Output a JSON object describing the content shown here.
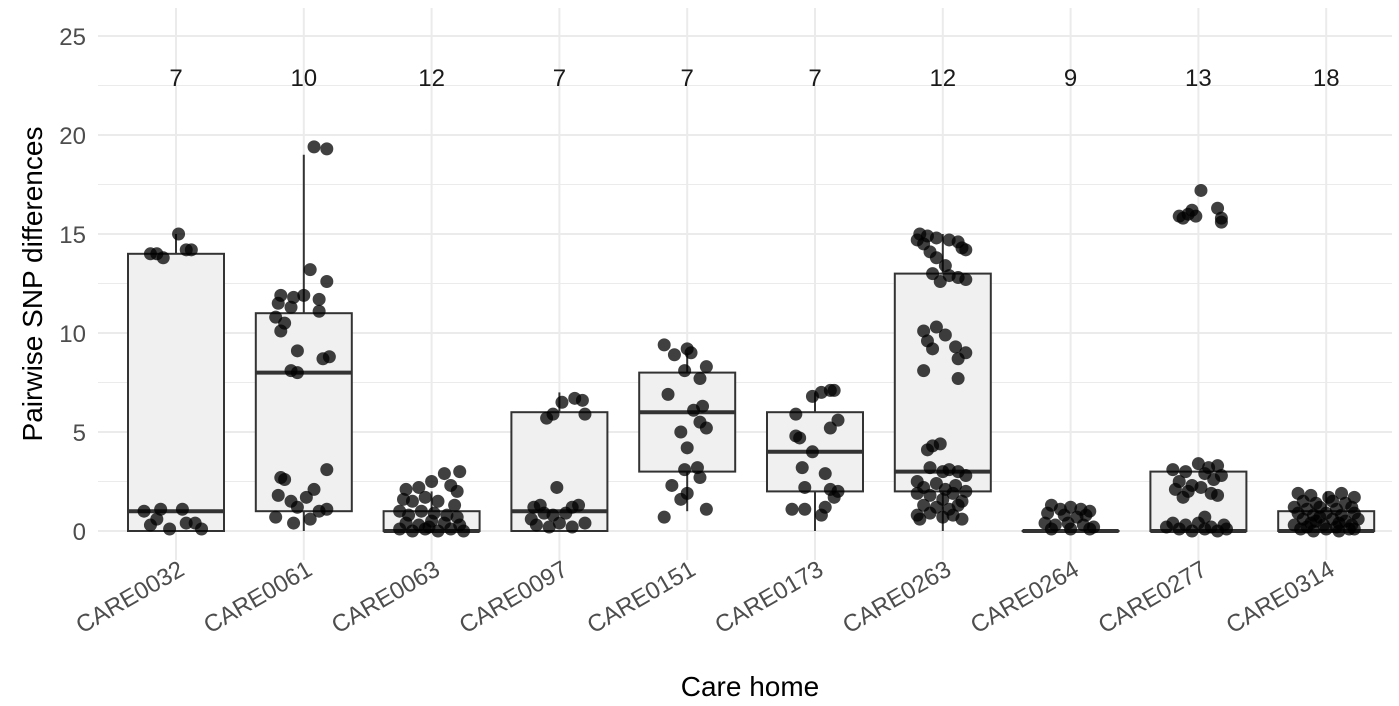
{
  "chart_data": {
    "type": "boxplot",
    "xlabel": "Care home",
    "ylabel": "Pairwise SNP differences",
    "ylim": [
      -1.2,
      25.5
    ],
    "yticks": [
      "0",
      "5",
      "10",
      "15",
      "20",
      "25"
    ],
    "grid": true,
    "categories": [
      "CARE0032",
      "CARE0061",
      "CARE0063",
      "CARE0097",
      "CARE0151",
      "CARE0173",
      "CARE0263",
      "CARE0264",
      "CARE0277",
      "CARE0314"
    ],
    "counts": [
      "7",
      "10",
      "12",
      "7",
      "7",
      "7",
      "12",
      "9",
      "13",
      "18"
    ],
    "box_fill": "#f0f0f0",
    "point_color": "#000000",
    "boxes": [
      {
        "q1": 0,
        "median": 1,
        "q3": 14,
        "whisker_low": 0,
        "whisker_high": 15
      },
      {
        "q1": 1,
        "median": 8,
        "q3": 11,
        "whisker_low": 0,
        "whisker_high": 19
      },
      {
        "q1": 0,
        "median": 0,
        "q3": 1,
        "whisker_low": 0,
        "whisker_high": 2
      },
      {
        "q1": 0,
        "median": 1,
        "q3": 6,
        "whisker_low": 0,
        "whisker_high": 7
      },
      {
        "q1": 3,
        "median": 6,
        "q3": 8,
        "whisker_low": 1,
        "whisker_high": 9
      },
      {
        "q1": 2,
        "median": 4,
        "q3": 6,
        "whisker_low": 0,
        "whisker_high": 7
      },
      {
        "q1": 2,
        "median": 3,
        "q3": 13,
        "whisker_low": 0,
        "whisker_high": 15
      },
      {
        "q1": 0,
        "median": 0,
        "q3": 0,
        "whisker_low": 0,
        "whisker_high": 0
      },
      {
        "q1": 0,
        "median": 0,
        "q3": 3,
        "whisker_low": 0,
        "whisker_high": 3
      },
      {
        "q1": 0,
        "median": 0,
        "q3": 1,
        "whisker_low": 0,
        "whisker_high": 2
      }
    ],
    "points": [
      [
        [
          -0.2,
          14
        ],
        [
          -0.15,
          14
        ],
        [
          -0.1,
          13.8
        ],
        [
          0.02,
          15
        ],
        [
          0.08,
          14.2
        ],
        [
          0.12,
          14.2
        ],
        [
          -0.25,
          1
        ],
        [
          -0.12,
          1.1
        ],
        [
          0.05,
          1.1
        ],
        [
          -0.2,
          0.3
        ],
        [
          -0.05,
          0.1
        ],
        [
          0.08,
          0.4
        ],
        [
          0.15,
          0.4
        ],
        [
          0.2,
          0.1
        ],
        [
          -0.15,
          0.6
        ]
      ],
      [
        [
          0.08,
          19.4
        ],
        [
          0.18,
          19.3
        ],
        [
          0.05,
          13.2
        ],
        [
          0.18,
          12.6
        ],
        [
          -0.18,
          11.9
        ],
        [
          -0.08,
          11.8
        ],
        [
          0,
          11.9
        ],
        [
          0.12,
          11.7
        ],
        [
          -0.2,
          11.5
        ],
        [
          -0.1,
          11.3
        ],
        [
          0.12,
          11.1
        ],
        [
          -0.22,
          10.8
        ],
        [
          -0.15,
          10.5
        ],
        [
          -0.18,
          10.1
        ],
        [
          -0.05,
          9.1
        ],
        [
          0.15,
          8.7
        ],
        [
          0.2,
          8.8
        ],
        [
          -0.1,
          8.1
        ],
        [
          -0.05,
          8
        ],
        [
          0.18,
          3.1
        ],
        [
          -0.18,
          2.7
        ],
        [
          -0.15,
          2.6
        ],
        [
          -0.2,
          1.8
        ],
        [
          -0.1,
          1.5
        ],
        [
          0.08,
          2.1
        ],
        [
          0.02,
          1.7
        ],
        [
          -0.05,
          1.2
        ],
        [
          0.12,
          1
        ],
        [
          0.18,
          1.1
        ],
        [
          -0.22,
          0.7
        ],
        [
          -0.08,
          0.4
        ],
        [
          0.05,
          0.6
        ]
      ],
      [
        [
          -0.2,
          2.1
        ],
        [
          -0.1,
          2.2
        ],
        [
          0,
          2.5
        ],
        [
          0.1,
          2.9
        ],
        [
          0.22,
          3
        ],
        [
          0.15,
          2.3
        ],
        [
          0.2,
          2
        ],
        [
          -0.22,
          1.6
        ],
        [
          -0.15,
          1.5
        ],
        [
          -0.05,
          1.7
        ],
        [
          0.05,
          1.5
        ],
        [
          0.18,
          1.3
        ],
        [
          -0.25,
          1
        ],
        [
          -0.18,
          0.8
        ],
        [
          -0.08,
          1
        ],
        [
          0.02,
          0.9
        ],
        [
          0.12,
          0.8
        ],
        [
          0.2,
          0.7
        ],
        [
          -0.2,
          0.4
        ],
        [
          -0.1,
          0.3
        ],
        [
          0,
          0.5
        ],
        [
          0.1,
          0.4
        ],
        [
          0.22,
          0.3
        ],
        [
          -0.25,
          0.1
        ],
        [
          -0.15,
          0
        ],
        [
          -0.05,
          0.1
        ],
        [
          0.05,
          0
        ],
        [
          0.15,
          0.1
        ],
        [
          0.25,
          0
        ],
        [
          -0.02,
          0.2
        ]
      ],
      [
        [
          0.12,
          6.7
        ],
        [
          0.18,
          6.6
        ],
        [
          0.02,
          6.5
        ],
        [
          -0.05,
          5.9
        ],
        [
          -0.1,
          5.7
        ],
        [
          0.2,
          5.9
        ],
        [
          -0.02,
          2.2
        ],
        [
          -0.15,
          1.3
        ],
        [
          -0.2,
          1.2
        ],
        [
          0.1,
          1.2
        ],
        [
          0.15,
          1.3
        ],
        [
          -0.12,
          0.9
        ],
        [
          -0.05,
          0.8
        ],
        [
          0.05,
          0.9
        ],
        [
          -0.18,
          0.3
        ],
        [
          -0.08,
          0.2
        ],
        [
          0,
          0.4
        ],
        [
          0.1,
          0.2
        ],
        [
          0.2,
          0.4
        ],
        [
          -0.22,
          0.6
        ]
      ],
      [
        [
          -0.18,
          9.4
        ],
        [
          0,
          9.2
        ],
        [
          0.03,
          9
        ],
        [
          -0.1,
          8.9
        ],
        [
          0.15,
          8.3
        ],
        [
          -0.02,
          8.1
        ],
        [
          0.1,
          7.7
        ],
        [
          -0.15,
          6.9
        ],
        [
          0.12,
          6.3
        ],
        [
          0.05,
          6.1
        ],
        [
          0.1,
          5.5
        ],
        [
          0.15,
          5.2
        ],
        [
          -0.05,
          5
        ],
        [
          0,
          4.2
        ],
        [
          -0.02,
          3.1
        ],
        [
          0.08,
          3.2
        ],
        [
          0.1,
          2.7
        ],
        [
          -0.12,
          2.3
        ],
        [
          0,
          1.9
        ],
        [
          -0.05,
          1.6
        ],
        [
          0.15,
          1.1
        ],
        [
          -0.18,
          0.7
        ]
      ],
      [
        [
          0.05,
          7
        ],
        [
          0.15,
          7.1
        ],
        [
          0.12,
          7.1
        ],
        [
          -0.02,
          6.8
        ],
        [
          -0.15,
          5.9
        ],
        [
          0.18,
          5.6
        ],
        [
          0.12,
          5.2
        ],
        [
          -0.15,
          4.8
        ],
        [
          -0.12,
          4.7
        ],
        [
          -0.02,
          4
        ],
        [
          -0.1,
          3.2
        ],
        [
          0.08,
          2.9
        ],
        [
          -0.08,
          2.2
        ],
        [
          0.12,
          2.1
        ],
        [
          0.18,
          2
        ],
        [
          0.15,
          1.7
        ],
        [
          0.08,
          1.2
        ],
        [
          -0.18,
          1.1
        ],
        [
          -0.08,
          1.1
        ],
        [
          0.05,
          0.8
        ]
      ],
      [
        [
          -0.18,
          15
        ],
        [
          -0.12,
          14.9
        ],
        [
          -0.05,
          14.8
        ],
        [
          0.05,
          14.7
        ],
        [
          0.12,
          14.6
        ],
        [
          0.18,
          14.2
        ],
        [
          -0.2,
          14.7
        ],
        [
          0.15,
          14.3
        ],
        [
          -0.15,
          14.5
        ],
        [
          -0.1,
          14.1
        ],
        [
          -0.05,
          13.8
        ],
        [
          0.02,
          13.4
        ],
        [
          -0.08,
          13
        ],
        [
          0.05,
          12.9
        ],
        [
          0.12,
          12.8
        ],
        [
          0.18,
          12.7
        ],
        [
          -0.02,
          12.6
        ],
        [
          -0.15,
          10.1
        ],
        [
          -0.05,
          10.3
        ],
        [
          0.02,
          9.9
        ],
        [
          -0.12,
          9.6
        ],
        [
          0.1,
          9.3
        ],
        [
          0.18,
          9
        ],
        [
          -0.08,
          9.2
        ],
        [
          0.12,
          8.7
        ],
        [
          -0.15,
          8.1
        ],
        [
          0.12,
          7.7
        ],
        [
          -0.08,
          4.3
        ],
        [
          -0.02,
          4.4
        ],
        [
          -0.12,
          4.1
        ],
        [
          -0.1,
          3.2
        ],
        [
          0,
          3
        ],
        [
          0.05,
          3.1
        ],
        [
          0.12,
          3
        ],
        [
          0.18,
          2.8
        ],
        [
          -0.2,
          2.5
        ],
        [
          -0.15,
          2.2
        ],
        [
          -0.05,
          2.4
        ],
        [
          0.02,
          2.1
        ],
        [
          0.1,
          2.3
        ],
        [
          0.18,
          2
        ],
        [
          -0.2,
          1.9
        ],
        [
          -0.1,
          1.8
        ],
        [
          0,
          1.6
        ],
        [
          0.08,
          1.9
        ],
        [
          0.15,
          1.5
        ],
        [
          -0.15,
          1.3
        ],
        [
          -0.05,
          1.2
        ],
        [
          0.05,
          1.1
        ],
        [
          0.12,
          1.3
        ],
        [
          -0.2,
          0.8
        ],
        [
          -0.1,
          0.9
        ],
        [
          0,
          0.7
        ],
        [
          0.08,
          0.8
        ],
        [
          0.15,
          0.6
        ],
        [
          -0.18,
          0.6
        ]
      ],
      [
        [
          -0.15,
          1.3
        ],
        [
          -0.08,
          1.1
        ],
        [
          0,
          1.2
        ],
        [
          0.08,
          1.1
        ],
        [
          0.15,
          1
        ],
        [
          -0.18,
          0.9
        ],
        [
          -0.05,
          0.8
        ],
        [
          0.05,
          0.7
        ],
        [
          0.12,
          0.8
        ],
        [
          -0.2,
          0.4
        ],
        [
          -0.12,
          0.3
        ],
        [
          -0.02,
          0.4
        ],
        [
          0.1,
          0.3
        ],
        [
          0.18,
          0.2
        ],
        [
          -0.15,
          0.1
        ],
        [
          0,
          0.1
        ],
        [
          0.15,
          0.1
        ]
      ],
      [
        [
          0.02,
          17.2
        ],
        [
          -0.15,
          15.9
        ],
        [
          -0.12,
          15.8
        ],
        [
          -0.08,
          16
        ],
        [
          -0.02,
          15.9
        ],
        [
          -0.05,
          16.2
        ],
        [
          0.15,
          16.3
        ],
        [
          0.18,
          15.8
        ],
        [
          0.18,
          15.6
        ],
        [
          0,
          3.4
        ],
        [
          0.15,
          3.3
        ],
        [
          0.08,
          3.2
        ],
        [
          -0.2,
          3.1
        ],
        [
          -0.1,
          3
        ],
        [
          0.05,
          2.9
        ],
        [
          0.18,
          2.8
        ],
        [
          -0.15,
          2.5
        ],
        [
          -0.05,
          2.3
        ],
        [
          0.12,
          2.6
        ],
        [
          -0.18,
          2.1
        ],
        [
          -0.08,
          2
        ],
        [
          0.02,
          2.2
        ],
        [
          0.15,
          1.8
        ],
        [
          -0.12,
          1.7
        ],
        [
          0.1,
          1.9
        ],
        [
          0.05,
          0.7
        ],
        [
          -0.2,
          0.4
        ],
        [
          -0.1,
          0.3
        ],
        [
          0,
          0.4
        ],
        [
          0.1,
          0.2
        ],
        [
          0.2,
          0.3
        ],
        [
          -0.15,
          0.1
        ],
        [
          -0.05,
          0
        ],
        [
          0.05,
          0.1
        ],
        [
          0.15,
          0
        ],
        [
          -0.25,
          0.2
        ],
        [
          0.22,
          0.1
        ]
      ],
      [
        [
          -0.22,
          1.9
        ],
        [
          -0.12,
          1.8
        ],
        [
          0.02,
          1.7
        ],
        [
          0.12,
          1.9
        ],
        [
          0.22,
          1.7
        ],
        [
          -0.18,
          1.5
        ],
        [
          -0.08,
          1.4
        ],
        [
          0.05,
          1.5
        ],
        [
          0.15,
          1.4
        ],
        [
          -0.25,
          1.2
        ],
        [
          -0.15,
          1.1
        ],
        [
          -0.05,
          1.2
        ],
        [
          0.08,
          1.1
        ],
        [
          0.2,
          1.2
        ],
        [
          -0.22,
          0.9
        ],
        [
          -0.1,
          0.8
        ],
        [
          0,
          0.9
        ],
        [
          0.12,
          0.8
        ],
        [
          0.22,
          0.9
        ],
        [
          -0.18,
          0.6
        ],
        [
          -0.08,
          0.5
        ],
        [
          0.05,
          0.6
        ],
        [
          0.15,
          0.5
        ],
        [
          -0.25,
          0.3
        ],
        [
          -0.15,
          0.2
        ],
        [
          -0.02,
          0.3
        ],
        [
          0.08,
          0.2
        ],
        [
          0.2,
          0.3
        ],
        [
          -0.2,
          0.1
        ],
        [
          -0.1,
          0
        ],
        [
          0,
          0.1
        ],
        [
          0.1,
          0
        ],
        [
          0.22,
          0.1
        ],
        [
          -0.05,
          0.7
        ],
        [
          0.1,
          0.4
        ],
        [
          -0.12,
          0.4
        ],
        [
          0.18,
          0.1
        ],
        [
          0.25,
          0.6
        ]
      ]
    ]
  }
}
